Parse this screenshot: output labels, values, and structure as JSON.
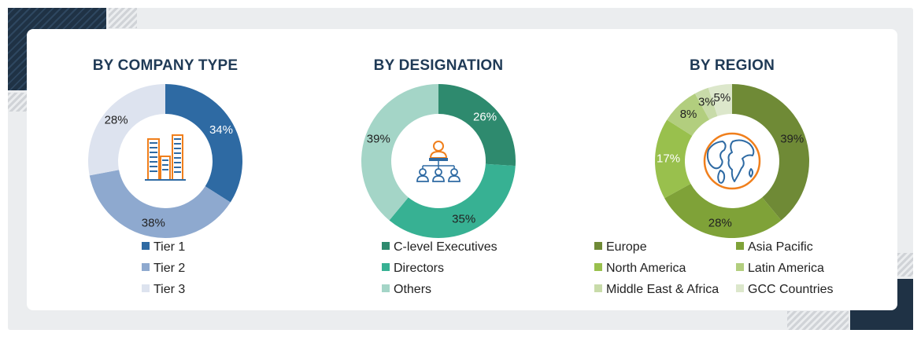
{
  "chart_data": [
    {
      "type": "pie",
      "title": "BY COMPANY TYPE",
      "center_icon": "buildings-icon",
      "categories": [
        "Tier 1",
        "Tier 2",
        "Tier 3"
      ],
      "values": [
        34,
        38,
        28
      ],
      "value_labels": [
        "34%",
        "38%",
        "28%"
      ],
      "colors": [
        "#2e6aa3",
        "#8ea9cf",
        "#dde3ef"
      ],
      "label_colors": [
        "#ffffff",
        "#222222",
        "#222222"
      ]
    },
    {
      "type": "pie",
      "title": "BY DESIGNATION",
      "center_icon": "org-chart-people-icon",
      "categories": [
        "C-level Executives",
        "Directors",
        "Others"
      ],
      "values": [
        26,
        35,
        39
      ],
      "value_labels": [
        "26%",
        "35%",
        "39%"
      ],
      "colors": [
        "#2e8a6e",
        "#37b193",
        "#a4d5c7"
      ],
      "label_colors": [
        "#ffffff",
        "#222222",
        "#222222"
      ]
    },
    {
      "type": "pie",
      "title": "BY REGION",
      "center_icon": "globe-icon",
      "categories": [
        "Europe",
        "Asia Pacific",
        "North America",
        "Latin America",
        "Middle East & Africa",
        "GCC Countries"
      ],
      "values": [
        39,
        28,
        17,
        8,
        3,
        5
      ],
      "value_labels": [
        "39%",
        "28%",
        "17%",
        "8%",
        "3%",
        "5%"
      ],
      "colors": [
        "#6f8a36",
        "#7fa238",
        "#99c04d",
        "#b2ce7e",
        "#c8dba9",
        "#dce7cb"
      ],
      "label_colors": [
        "#222222",
        "#222222",
        "#ffffff",
        "#222222",
        "#222222",
        "#222222"
      ]
    }
  ]
}
